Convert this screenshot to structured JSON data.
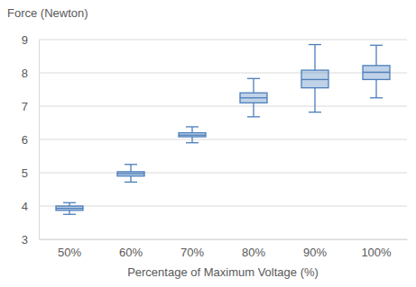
{
  "chart_data": {
    "type": "box",
    "y_label": "Force (Newton)",
    "x_label": "Percentage of Maximum Voltage (%)",
    "categories": [
      "50%",
      "60%",
      "70%",
      "80%",
      "90%",
      "100%"
    ],
    "min": [
      3.75,
      4.72,
      5.9,
      6.68,
      6.82,
      7.25
    ],
    "q1": [
      3.87,
      4.9,
      6.08,
      7.1,
      7.55,
      7.8
    ],
    "median": [
      3.93,
      4.97,
      6.13,
      7.25,
      7.8,
      8.02
    ],
    "q3": [
      4.0,
      5.03,
      6.2,
      7.4,
      8.08,
      8.22
    ],
    "max": [
      4.1,
      5.25,
      6.38,
      7.83,
      8.85,
      8.83
    ],
    "color": "#4a7ebb",
    "ylim": [
      3,
      9
    ],
    "yticks": [
      3,
      4,
      5,
      6,
      7,
      8,
      9
    ],
    "grid": true
  }
}
